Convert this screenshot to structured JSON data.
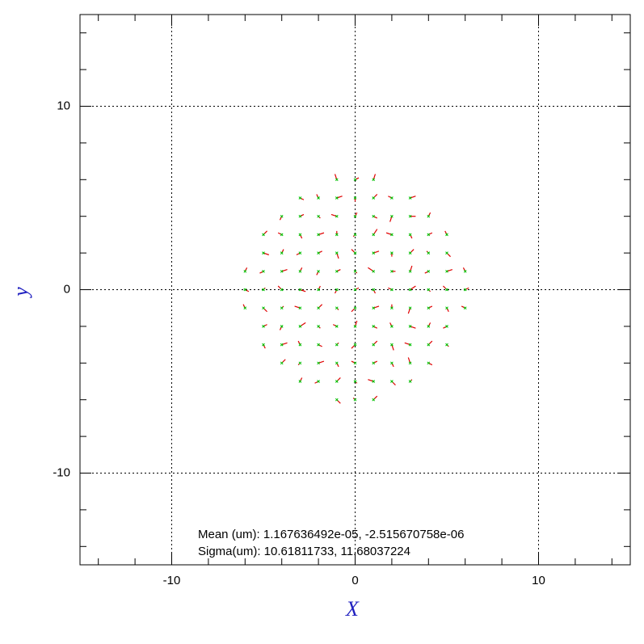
{
  "chart_data": {
    "type": "quiver",
    "xlabel": "X",
    "ylabel": "y",
    "xlim": [
      -15,
      15
    ],
    "ylim": [
      -15,
      15
    ],
    "xticks": [
      -10,
      0,
      10
    ],
    "yticks": [
      -10,
      0,
      10
    ],
    "xminorticks": [
      -14,
      -12,
      -8,
      -6,
      -4,
      -2,
      2,
      4,
      6,
      8,
      12,
      14
    ],
    "yminorticks": [
      -14,
      -12,
      -8,
      -6,
      -4,
      -2,
      2,
      4,
      6,
      8,
      12,
      14
    ],
    "grid": true,
    "marker_color": "#00c000",
    "vector_color": "#e00000",
    "annotations": [
      "Mean (um): 1.167636492e-05, -2.515670758e-06",
      "Sigma(um): 10.61811733, 11.68037224"
    ],
    "points": [
      [
        -1,
        6,
        -0.1,
        0.3
      ],
      [
        0,
        6,
        0.2,
        0.1
      ],
      [
        1,
        6,
        0.1,
        0.3
      ],
      [
        -3,
        5,
        0.2,
        -0.1
      ],
      [
        -2,
        5,
        -0.1,
        0.2
      ],
      [
        -1,
        5,
        0.3,
        0.1
      ],
      [
        0,
        5,
        0,
        -0.2
      ],
      [
        1,
        5,
        0.2,
        0.2
      ],
      [
        2,
        5,
        -0.2,
        0.1
      ],
      [
        3,
        5,
        0.3,
        0.1
      ],
      [
        -4,
        4,
        -0.1,
        -0.2
      ],
      [
        -3,
        4,
        0.2,
        0.1
      ],
      [
        -2,
        4,
        0.1,
        -0.1
      ],
      [
        -1,
        4,
        -0.3,
        0.1
      ],
      [
        0,
        4,
        0.1,
        0.2
      ],
      [
        1,
        4,
        0.2,
        -0.1
      ],
      [
        2,
        4,
        -0.1,
        -0.3
      ],
      [
        3,
        4,
        0.3,
        0
      ],
      [
        4,
        4,
        0.1,
        0.2
      ],
      [
        -5,
        3,
        0.2,
        0.2
      ],
      [
        -4,
        3,
        -0.2,
        0.1
      ],
      [
        -3,
        3,
        0.1,
        -0.2
      ],
      [
        -2,
        3,
        0.3,
        0.1
      ],
      [
        -1,
        3,
        0,
        0.2
      ],
      [
        0,
        3,
        -0.1,
        -0.1
      ],
      [
        1,
        3,
        0.2,
        0.3
      ],
      [
        2,
        3,
        -0.3,
        0.1
      ],
      [
        3,
        3,
        0.1,
        -0.2
      ],
      [
        4,
        3,
        0.2,
        0.1
      ],
      [
        5,
        3,
        -0.1,
        0.2
      ],
      [
        -5,
        2,
        0.3,
        -0.1
      ],
      [
        -4,
        2,
        0.1,
        0.2
      ],
      [
        -3,
        2,
        -0.2,
        -0.1
      ],
      [
        -2,
        2,
        0.2,
        0.1
      ],
      [
        -1,
        2,
        0.1,
        -0.3
      ],
      [
        0,
        2,
        -0.2,
        0.2
      ],
      [
        1,
        2,
        0.3,
        0.1
      ],
      [
        2,
        2,
        0,
        -0.2
      ],
      [
        3,
        2,
        0.2,
        0.2
      ],
      [
        4,
        2,
        -0.1,
        0.1
      ],
      [
        5,
        2,
        0.2,
        -0.2
      ],
      [
        -6,
        1,
        0.1,
        0.2
      ],
      [
        -5,
        1,
        -0.2,
        -0.1
      ],
      [
        -4,
        1,
        0.3,
        0.1
      ],
      [
        -3,
        1,
        0.1,
        0.2
      ],
      [
        -2,
        1,
        -0.1,
        -0.2
      ],
      [
        -1,
        1,
        0.2,
        0.1
      ],
      [
        0,
        1,
        0.1,
        -0.1
      ],
      [
        1,
        1,
        -0.3,
        0.2
      ],
      [
        2,
        1,
        0.2,
        0
      ],
      [
        3,
        1,
        0.1,
        0.3
      ],
      [
        4,
        1,
        -0.2,
        -0.1
      ],
      [
        5,
        1,
        0.3,
        0.1
      ],
      [
        6,
        1,
        -0.1,
        0.2
      ],
      [
        -6,
        0,
        0.2,
        -0.1
      ],
      [
        -5,
        0,
        0.1,
        0.1
      ],
      [
        -4,
        0,
        -0.2,
        0.2
      ],
      [
        -3,
        0,
        0.3,
        -0.1
      ],
      [
        -2,
        0,
        0.1,
        0.2
      ],
      [
        -1,
        0,
        -0.1,
        -0.2
      ],
      [
        0,
        0,
        0.2,
        0.1
      ],
      [
        1,
        0,
        0.1,
        -0.2
      ],
      [
        2,
        0,
        -0.2,
        0.1
      ],
      [
        3,
        0,
        0.3,
        0.2
      ],
      [
        4,
        0,
        0.1,
        -0.1
      ],
      [
        5,
        0,
        -0.2,
        0.2
      ],
      [
        6,
        0,
        0.2,
        0.1
      ],
      [
        -6,
        -1,
        -0.1,
        0.2
      ],
      [
        -5,
        -1,
        0.2,
        -0.2
      ],
      [
        -4,
        -1,
        0.1,
        0.1
      ],
      [
        -3,
        -1,
        -0.3,
        0.1
      ],
      [
        -2,
        -1,
        0.2,
        0.2
      ],
      [
        -1,
        -1,
        0.1,
        -0.1
      ],
      [
        0,
        -1,
        -0.2,
        -0.2
      ],
      [
        1,
        -1,
        0.3,
        0.1
      ],
      [
        2,
        -1,
        0,
        0.2
      ],
      [
        3,
        -1,
        -0.1,
        -0.3
      ],
      [
        4,
        -1,
        0.2,
        0.1
      ],
      [
        5,
        -1,
        0.1,
        -0.2
      ],
      [
        6,
        -1,
        -0.2,
        0.1
      ],
      [
        -5,
        -2,
        0.2,
        0.1
      ],
      [
        -4,
        -2,
        -0.1,
        -0.2
      ],
      [
        -3,
        -2,
        0.3,
        0.2
      ],
      [
        -2,
        -2,
        0.1,
        -0.1
      ],
      [
        -1,
        -2,
        -0.2,
        0.1
      ],
      [
        0,
        -2,
        0.1,
        0.3
      ],
      [
        1,
        -2,
        0.2,
        -0.1
      ],
      [
        2,
        -2,
        -0.1,
        0.2
      ],
      [
        3,
        -2,
        0.3,
        -0.1
      ],
      [
        4,
        -2,
        0.1,
        0.2
      ],
      [
        5,
        -2,
        -0.2,
        -0.1
      ],
      [
        -5,
        -3,
        0.1,
        -0.2
      ],
      [
        -4,
        -3,
        0.3,
        0.1
      ],
      [
        -3,
        -3,
        -0.1,
        0.2
      ],
      [
        -2,
        -3,
        0.2,
        -0.1
      ],
      [
        -1,
        -3,
        0.1,
        0.1
      ],
      [
        0,
        -3,
        -0.2,
        -0.2
      ],
      [
        1,
        -3,
        0.2,
        0.2
      ],
      [
        2,
        -3,
        0.1,
        -0.3
      ],
      [
        3,
        -3,
        -0.3,
        0.1
      ],
      [
        4,
        -3,
        0.2,
        0.2
      ],
      [
        5,
        -3,
        0.1,
        -0.1
      ],
      [
        -4,
        -4,
        0.2,
        0.2
      ],
      [
        -3,
        -4,
        -0.1,
        -0.1
      ],
      [
        -2,
        -4,
        0.3,
        0.1
      ],
      [
        -1,
        -4,
        0.1,
        -0.2
      ],
      [
        0,
        -4,
        -0.2,
        0.1
      ],
      [
        1,
        -4,
        0.2,
        0.1
      ],
      [
        2,
        -4,
        0.1,
        -0.2
      ],
      [
        3,
        -4,
        -0.1,
        0.3
      ],
      [
        4,
        -4,
        0.2,
        -0.1
      ],
      [
        -3,
        -5,
        0.1,
        0.2
      ],
      [
        -2,
        -5,
        -0.2,
        -0.1
      ],
      [
        -1,
        -5,
        0.2,
        0.2
      ],
      [
        0,
        -5,
        0.1,
        -0.1
      ],
      [
        1,
        -5,
        -0.3,
        0.1
      ],
      [
        2,
        -5,
        0.2,
        -0.2
      ],
      [
        3,
        -5,
        0.1,
        0.1
      ],
      [
        -1,
        -6,
        0.2,
        -0.2
      ],
      [
        0,
        -6,
        -0.1,
        0.1
      ],
      [
        1,
        -6,
        0.2,
        0.2
      ]
    ]
  }
}
